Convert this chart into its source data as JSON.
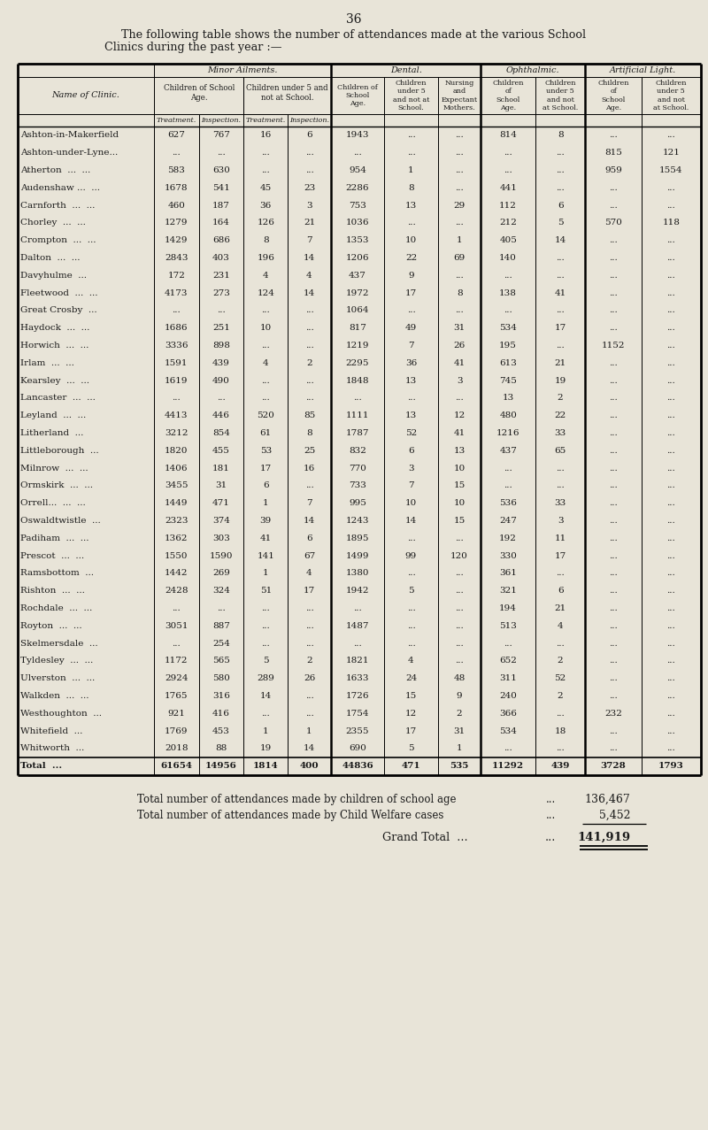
{
  "page_number": "36",
  "title_line1": "The following table shows the number of attendances made at the various School",
  "title_line2": "Clinics during the past year :—",
  "bg_color": "#e8e4d8",
  "rows": [
    [
      "Ashton-in-Makerfield",
      "627",
      "767",
      "16",
      "6",
      "1943",
      "...",
      "...",
      "814",
      "8",
      "...",
      "..."
    ],
    [
      "Ashton-under-Lyne...",
      "...",
      "...",
      "...",
      "...",
      "...",
      "...",
      "...",
      "...",
      "...",
      "815",
      "121"
    ],
    [
      "Atherton  ...  ...",
      "583",
      "630",
      "...",
      "...",
      "954",
      "1",
      "...",
      "...",
      "...",
      "959",
      "1554"
    ],
    [
      "Audenshaw ...  ...",
      "1678",
      "541",
      "45",
      "23",
      "2286",
      "8",
      "...",
      "441",
      "...",
      "...",
      "..."
    ],
    [
      "Carnforth  ...  ...",
      "460",
      "187",
      "36",
      "3",
      "753",
      "13",
      "29",
      "112",
      "6",
      "...",
      "..."
    ],
    [
      "Chorley  ...  ...",
      "1279",
      "164",
      "126",
      "21",
      "1036",
      "...",
      "...",
      "212",
      "5",
      "570",
      "118"
    ],
    [
      "Crompton  ...  ...",
      "1429",
      "686",
      "8",
      "7",
      "1353",
      "10",
      "1",
      "405",
      "14",
      "...",
      "..."
    ],
    [
      "Dalton  ...  ...",
      "2843",
      "403",
      "196",
      "14",
      "1206",
      "22",
      "69",
      "140",
      "...",
      "...",
      "..."
    ],
    [
      "Davyhulme  ...",
      "172",
      "231",
      "4",
      "4",
      "437",
      "9",
      "...",
      "...",
      "...",
      "...",
      "..."
    ],
    [
      "Fleetwood  ...  ...",
      "4173",
      "273",
      "124",
      "14",
      "1972",
      "17",
      "8",
      "138",
      "41",
      "...",
      "..."
    ],
    [
      "Great Crosby  ...",
      "...",
      "...",
      "...",
      "...",
      "1064",
      "...",
      "...",
      "...",
      "...",
      "...",
      "..."
    ],
    [
      "Haydock  ...  ...",
      "1686",
      "251",
      "10",
      "...",
      "817",
      "49",
      "31",
      "534",
      "17",
      "...",
      "..."
    ],
    [
      "Horwich  ...  ...",
      "3336",
      "898",
      "...",
      "...",
      "1219",
      "7",
      "26",
      "195",
      "...",
      "1152",
      "..."
    ],
    [
      "Irlam  ...  ...",
      "1591",
      "439",
      "4",
      "2",
      "2295",
      "36",
      "41",
      "613",
      "21",
      "...",
      "..."
    ],
    [
      "Kearsley  ...  ...",
      "1619",
      "490",
      "...",
      "...",
      "1848",
      "13",
      "3",
      "745",
      "19",
      "...",
      "..."
    ],
    [
      "Lancaster  ...  ...",
      "...",
      "...",
      "...",
      "...",
      "...",
      "...",
      "...",
      "13",
      "2",
      "...",
      "..."
    ],
    [
      "Leyland  ...  ...",
      "4413",
      "446",
      "520",
      "85",
      "1111",
      "13",
      "12",
      "480",
      "22",
      "...",
      "..."
    ],
    [
      "Litherland  ...",
      "3212",
      "854",
      "61",
      "8",
      "1787",
      "52",
      "41",
      "1216",
      "33",
      "...",
      "..."
    ],
    [
      "Littleborough  ...",
      "1820",
      "455",
      "53",
      "25",
      "832",
      "6",
      "13",
      "437",
      "65",
      "...",
      "..."
    ],
    [
      "Milnrow  ...  ...",
      "1406",
      "181",
      "17",
      "16",
      "770",
      "3",
      "10",
      "...",
      "...",
      "...",
      "..."
    ],
    [
      "Ormskirk  ...  ...",
      "3455",
      "31",
      "6",
      "...",
      "733",
      "7",
      "15",
      "...",
      "...",
      "...",
      "..."
    ],
    [
      "Orrell...  ...  ...",
      "1449",
      "471",
      "1",
      "7",
      "995",
      "10",
      "10",
      "536",
      "33",
      "...",
      "..."
    ],
    [
      "Oswaldtwistle  ...",
      "2323",
      "374",
      "39",
      "14",
      "1243",
      "14",
      "15",
      "247",
      "3",
      "...",
      "..."
    ],
    [
      "Padiham  ...  ...",
      "1362",
      "303",
      "41",
      "6",
      "1895",
      "...",
      "...",
      "192",
      "11",
      "...",
      "..."
    ],
    [
      "Prescot  ...  ...",
      "1550",
      "1590",
      "141",
      "67",
      "1499",
      "99",
      "120",
      "330",
      "17",
      "...",
      "..."
    ],
    [
      "Ramsbottom  ...",
      "1442",
      "269",
      "1",
      "4",
      "1380",
      "...",
      "...",
      "361",
      "...",
      "...",
      "..."
    ],
    [
      "Rishton  ...  ...",
      "2428",
      "324",
      "51",
      "17",
      "1942",
      "5",
      "...",
      "321",
      "6",
      "...",
      "..."
    ],
    [
      "Rochdale  ...  ...",
      "...",
      "...",
      "...",
      "...",
      "...",
      "...",
      "...",
      "194",
      "21",
      "...",
      "..."
    ],
    [
      "Royton  ...  ...",
      "3051",
      "887",
      "...",
      "...",
      "1487",
      "...",
      "...",
      "513",
      "4",
      "...",
      "..."
    ],
    [
      "Skelmersdale  ...",
      "...",
      "254",
      "...",
      "...",
      "...",
      "...",
      "...",
      "...",
      "...",
      "...",
      "..."
    ],
    [
      "Tyldesley  ...  ...",
      "1172",
      "565",
      "5",
      "2",
      "1821",
      "4",
      "...",
      "652",
      "2",
      "...",
      "..."
    ],
    [
      "Ulverston  ...  ...",
      "2924",
      "580",
      "289",
      "26",
      "1633",
      "24",
      "48",
      "311",
      "52",
      "...",
      "..."
    ],
    [
      "Walkden  ...  ...",
      "1765",
      "316",
      "14",
      "...",
      "1726",
      "15",
      "9",
      "240",
      "2",
      "...",
      "..."
    ],
    [
      "Westhoughton  ...",
      "921",
      "416",
      "...",
      "...",
      "1754",
      "12",
      "2",
      "366",
      "...",
      "232",
      "..."
    ],
    [
      "Whitefield  ...",
      "1769",
      "453",
      "1",
      "1",
      "2355",
      "17",
      "31",
      "534",
      "18",
      "...",
      "..."
    ],
    [
      "Whitworth  ...",
      "2018",
      "88",
      "19",
      "14",
      "690",
      "5",
      "1",
      "...",
      "...",
      "...",
      "..."
    ],
    [
      "Total  ...",
      "61654",
      "14956",
      "1814",
      "400",
      "44836",
      "471",
      "535",
      "11292",
      "439",
      "3728",
      "1793"
    ]
  ],
  "footer_lines": [
    [
      "Total number of attendances made by children of school age",
      "...",
      "136,467"
    ],
    [
      "Total number of attendances made by Child Welfare cases",
      "...",
      "5,452"
    ]
  ],
  "grand_total_label": "Grand Total  ...",
  "grand_total_dots": "...",
  "grand_total_value": "141,919"
}
